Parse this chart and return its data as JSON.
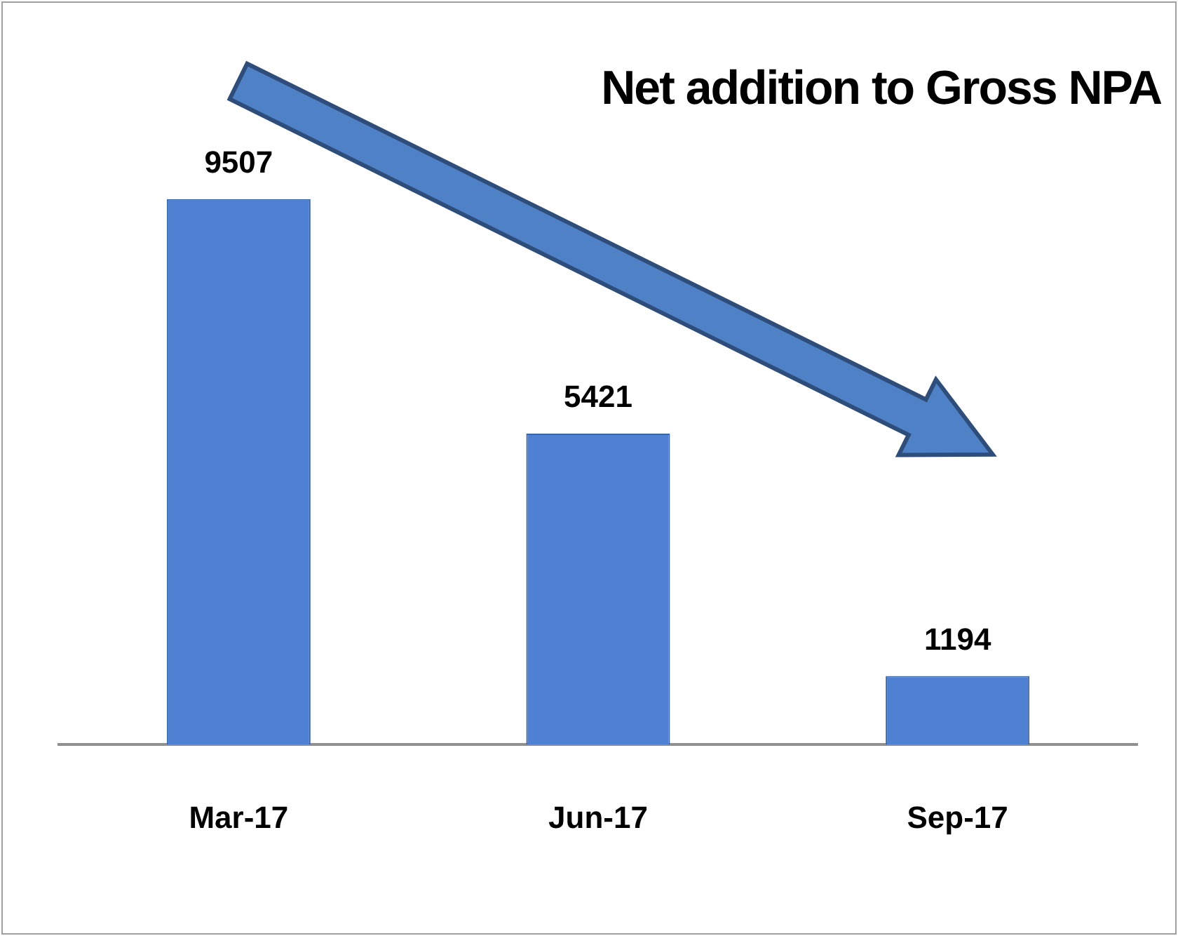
{
  "chart_data": {
    "type": "bar",
    "title": "Net addition to Gross NPA",
    "categories": [
      "Mar-17",
      "Jun-17",
      "Sep-17"
    ],
    "values": [
      9507,
      5421,
      1194
    ],
    "color": "#4f81d3",
    "data_labels": true,
    "grid": false,
    "legend": false
  }
}
